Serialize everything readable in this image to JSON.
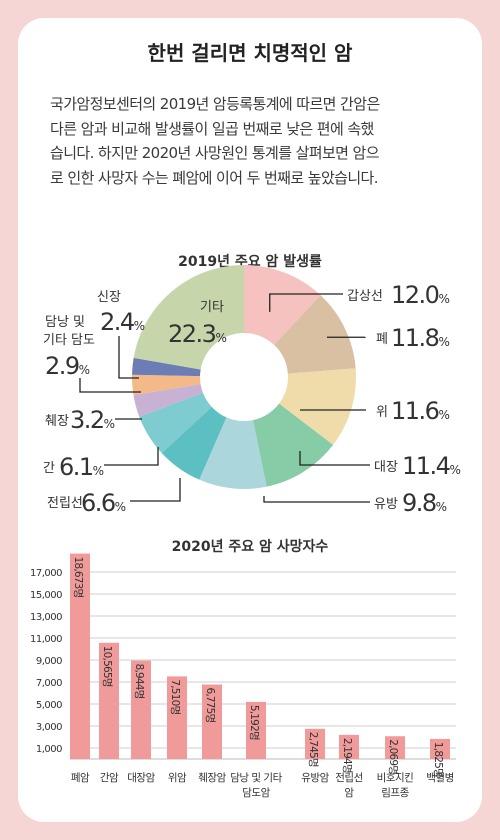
{
  "title": "한번 걸리면 치명적인 암",
  "intro_lines": [
    "국가암정보센터의 2019년 암등록통계에 따르면 간암은",
    "다른 암과 비교해 발생률이 일곱 번째로 낮은 편에 속했",
    "습니다. 하지만 2020년 사망원인 통계를 살펴보면 암으",
    "로 인한 사망자 수는 폐암에 이어 두 번째로 높았습니다."
  ],
  "chart_data": [
    {
      "type": "donut",
      "title": "2019년 주요 암 발생률",
      "unit": "%",
      "slices": [
        {
          "label": "갑상선",
          "value": 12.0,
          "display": "12.0",
          "color": "#f5c2c0"
        },
        {
          "label": "폐",
          "value": 11.8,
          "display": "11.8",
          "color": "#d9c0a3"
        },
        {
          "label": "위",
          "value": 11.6,
          "display": "11.6",
          "color": "#efdcaa"
        },
        {
          "label": "대장",
          "value": 11.4,
          "display": "11.4",
          "color": "#86cca7"
        },
        {
          "label": "유방",
          "value": 9.8,
          "display": "9.8",
          "color": "#abd6db"
        },
        {
          "label": "전립선",
          "value": 6.6,
          "display": "6.6",
          "color": "#5cc0c2"
        },
        {
          "label": "간",
          "value": 6.1,
          "display": "6.1",
          "color": "#7ecbd0"
        },
        {
          "label": "췌장",
          "value": 3.2,
          "display": "3.2",
          "color": "#c9b1d3"
        },
        {
          "label": "담낭 및 기타 담도",
          "value": 2.9,
          "display": "2.9",
          "color": "#f3b989"
        },
        {
          "label": "신장",
          "value": 2.4,
          "display": "2.4",
          "color": "#6c7db6"
        },
        {
          "label": "기타",
          "value": 22.3,
          "display": "22.3",
          "color": "#c6d6aa"
        }
      ]
    },
    {
      "type": "bar",
      "title": "2020년 주요 암 사망자수",
      "categories": [
        "폐암",
        "간암",
        "대장암",
        "위암",
        "췌장암",
        "담낭 및 기타 담도암",
        "유방암",
        "전립선암",
        "비호지킨 림프종",
        "백혈병"
      ],
      "values": [
        18673,
        10565,
        8944,
        7510,
        6775,
        5192,
        2745,
        2194,
        2069,
        1825
      ],
      "value_labels": [
        "18,673명",
        "10,565명",
        "8,944명",
        "7,510명",
        "6,775명",
        "5,192명",
        "2,745명",
        "2,194명",
        "2,069명",
        "1,825명"
      ],
      "yticks": [
        "17,000",
        "15,000",
        "13,000",
        "11,000",
        "9,000",
        "7,000",
        "5,000",
        "3,000",
        "1,000"
      ],
      "ytick_values": [
        17000,
        15000,
        13000,
        11000,
        9000,
        7000,
        5000,
        3000,
        1000
      ],
      "bar_color": "#f09a9a",
      "grid": true
    }
  ]
}
